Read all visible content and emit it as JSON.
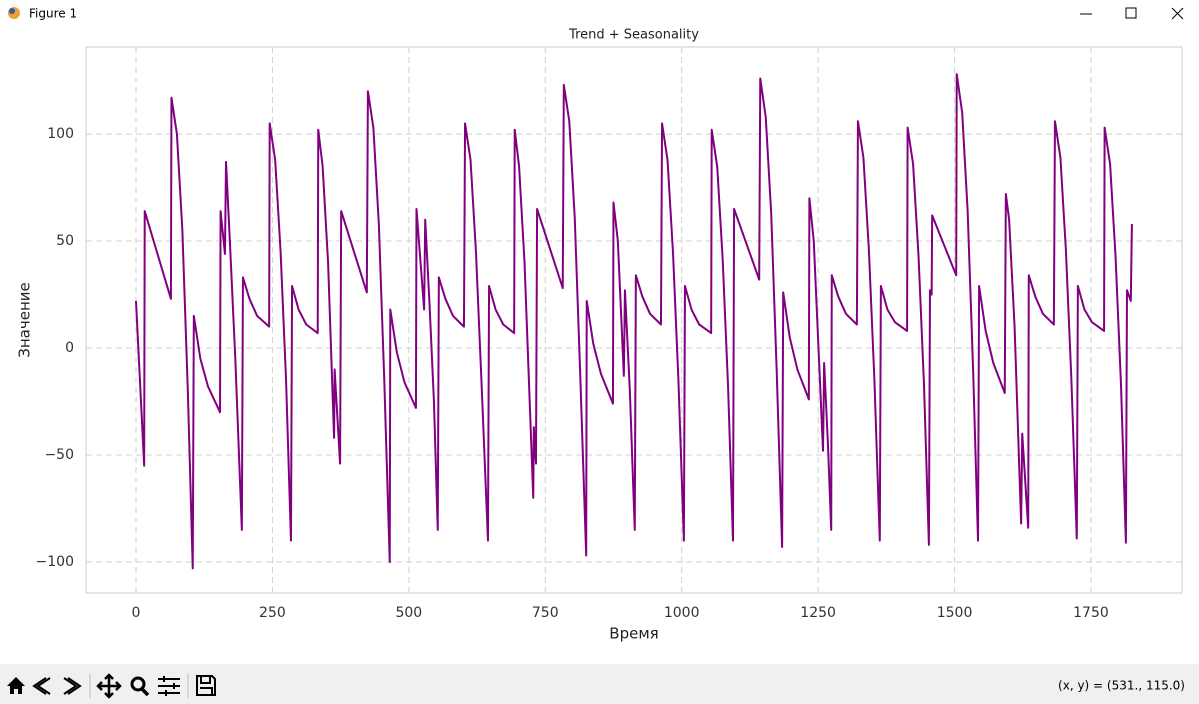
{
  "window": {
    "title": "Figure 1",
    "status": "(x, y) = (531., 115.0)"
  },
  "chart_data": {
    "type": "line",
    "title": "Trend + Seasonality",
    "x_label": "Время",
    "y_label": "Значение",
    "color": "#800080",
    "grid": true,
    "x": [
      0,
      15,
      16,
      64,
      65,
      75,
      85,
      95,
      104,
      106,
      118,
      132,
      154,
      155,
      163,
      165,
      172,
      182,
      194,
      196,
      208,
      222,
      244,
      245,
      255,
      265,
      275,
      284,
      286,
      298,
      312,
      333,
      334,
      342,
      352,
      363,
      364,
      374,
      376,
      423,
      425,
      435,
      445,
      455,
      465,
      466,
      478,
      492,
      513,
      514,
      528,
      530,
      538,
      546,
      553,
      555,
      567,
      581,
      601,
      603,
      613,
      623,
      633,
      645,
      647,
      659,
      673,
      693,
      694,
      702,
      712,
      728,
      729,
      733,
      735,
      782,
      784,
      794,
      804,
      814,
      825,
      826,
      838,
      852,
      874,
      875,
      883,
      894,
      896,
      905,
      914,
      916,
      928,
      942,
      962,
      964,
      974,
      984,
      994,
      1004,
      1006,
      1018,
      1032,
      1054,
      1055,
      1065,
      1075,
      1085,
      1094,
      1096,
      1142,
      1144,
      1154,
      1164,
      1174,
      1184,
      1186,
      1198,
      1212,
      1233,
      1234,
      1242,
      1259,
      1261,
      1268,
      1274,
      1275,
      1287,
      1301,
      1321,
      1323,
      1333,
      1343,
      1353,
      1363,
      1365,
      1377,
      1391,
      1413,
      1414,
      1424,
      1434,
      1444,
      1453,
      1455,
      1458,
      1459,
      1503,
      1504,
      1514,
      1524,
      1534,
      1543,
      1545,
      1557,
      1571,
      1592,
      1594,
      1600,
      1610,
      1622,
      1624,
      1635,
      1636,
      1648,
      1662,
      1682,
      1684,
      1694,
      1704,
      1714,
      1724,
      1726,
      1738,
      1752,
      1774,
      1775,
      1785,
      1795,
      1805,
      1814,
      1816,
      1823,
      1825
    ],
    "values": [
      22,
      -55,
      64,
      23,
      117,
      100,
      55,
      -20,
      -103,
      15,
      -5,
      -18,
      -30,
      64,
      44,
      87,
      50,
      -5,
      -85,
      33,
      23,
      15,
      10,
      105,
      88,
      45,
      -15,
      -90,
      29,
      18,
      11,
      7,
      102,
      85,
      40,
      -42,
      -10,
      -54,
      64,
      26,
      120,
      103,
      58,
      -15,
      -100,
      18,
      -2,
      -16,
      -28,
      65,
      18,
      60,
      20,
      -25,
      -85,
      33,
      23,
      15,
      10,
      105,
      88,
      45,
      -15,
      -90,
      29,
      18,
      11,
      7,
      102,
      85,
      40,
      -70,
      -37,
      -54,
      65,
      28,
      123,
      106,
      61,
      -12,
      -97,
      22,
      2,
      -12,
      -26,
      68,
      50,
      -13,
      27,
      -20,
      -85,
      34,
      24,
      16,
      11,
      105,
      88,
      45,
      -15,
      -90,
      29,
      18,
      11,
      7,
      102,
      85,
      42,
      -18,
      -90,
      65,
      32,
      126,
      108,
      63,
      -10,
      -93,
      26,
      5,
      -10,
      -24,
      70,
      50,
      -48,
      -7,
      -45,
      -85,
      34,
      24,
      16,
      11,
      106,
      89,
      46,
      -14,
      -90,
      29,
      18,
      12,
      8,
      103,
      86,
      43,
      -17,
      -92,
      27,
      25,
      62,
      34,
      128,
      110,
      64,
      -10,
      -90,
      29,
      8,
      -7,
      -21,
      72,
      60,
      10,
      -82,
      -40,
      -84,
      34,
      24,
      16,
      11,
      106,
      89,
      46,
      -14,
      -89,
      29,
      18,
      12,
      8,
      103,
      86,
      43,
      -17,
      -91,
      27,
      22,
      58
    ],
    "xlim": [
      -91.6,
      1916.8
    ],
    "ylim": [
      -114.5,
      140.7
    ],
    "xticks": [
      0,
      250,
      500,
      750,
      1000,
      1250,
      1500,
      1750
    ],
    "yticks": [
      {
        "value": -100,
        "label": "−100"
      },
      {
        "value": -50,
        "label": "−50"
      },
      0,
      50,
      100
    ]
  }
}
